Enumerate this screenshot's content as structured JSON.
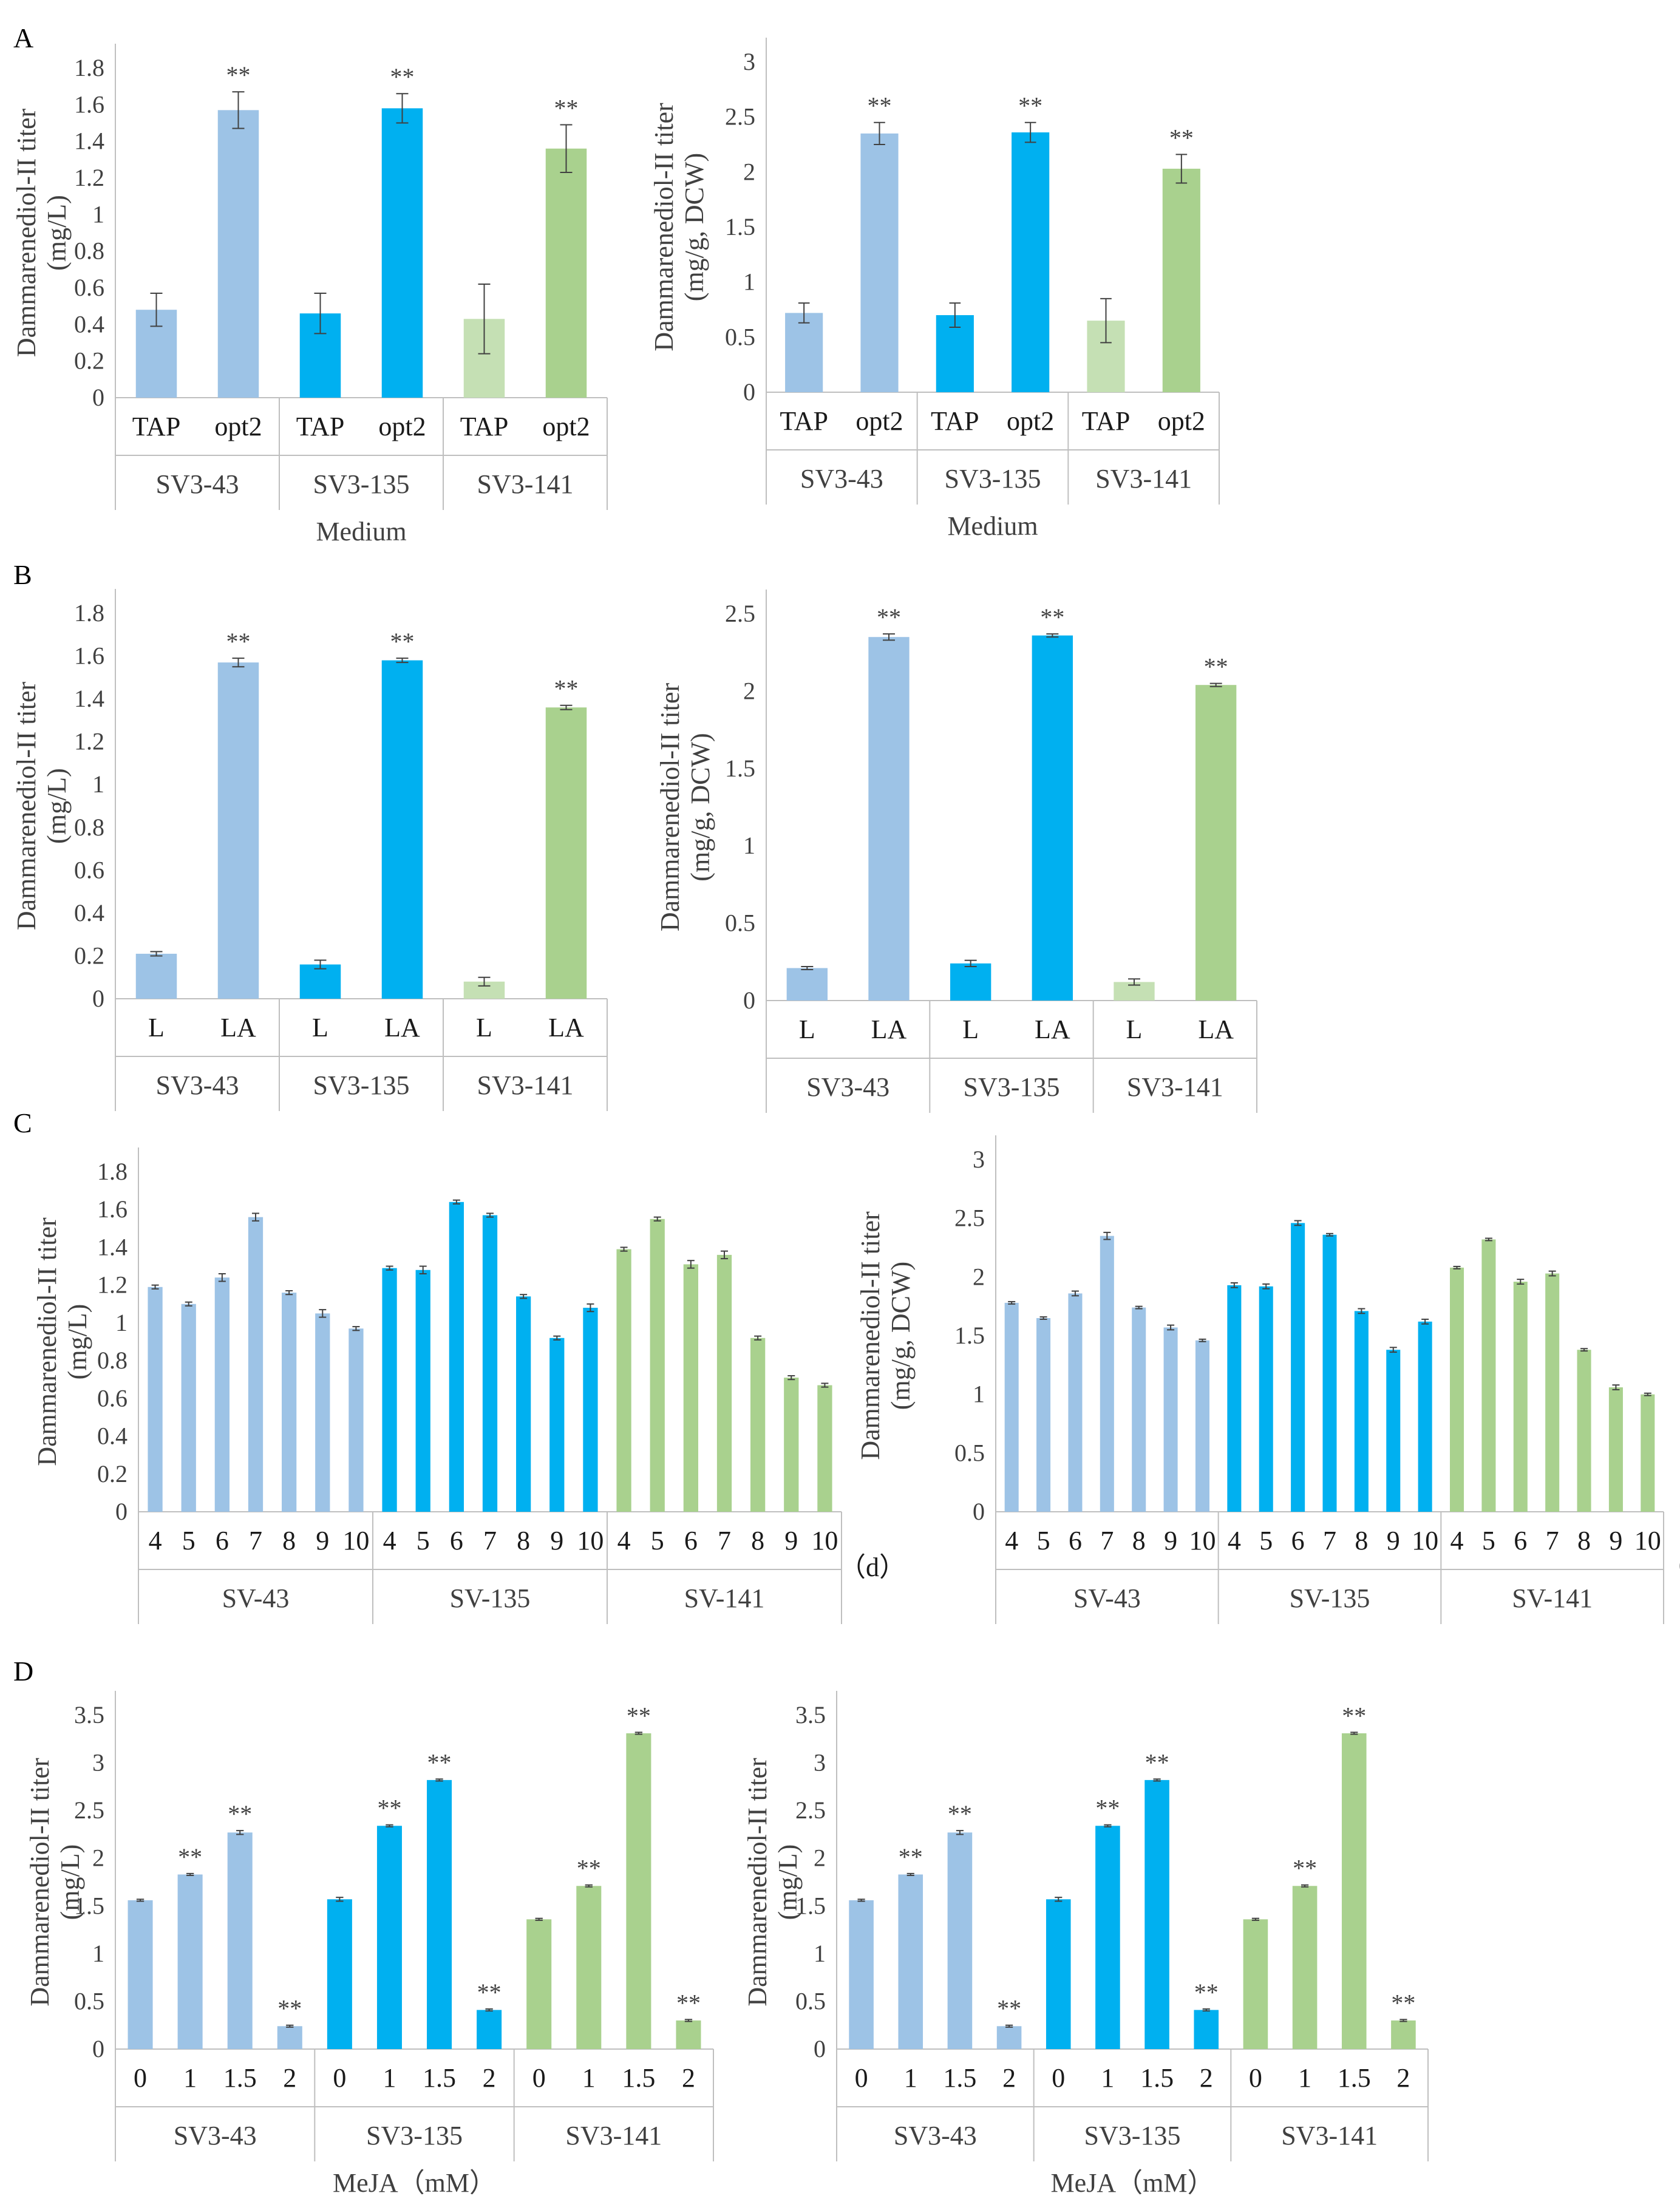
{
  "figure": {
    "panel_letters": [
      "A",
      "B",
      "C",
      "D"
    ]
  },
  "colors": {
    "SV3-43": "#9dc3e6",
    "SV3-135": "#00b0f0",
    "SV3-141_light": "#c5e0b4",
    "SV3-141": "#a9d18e",
    "axis": "#bfbfbf",
    "error": "#404040"
  },
  "chart_data": [
    {
      "id": "A-left",
      "panel": "A",
      "type": "bar",
      "ylabel": "Dammarenediol-II titer (mg/L)",
      "xlabel": "Medium",
      "ylim": [
        0,
        1.8
      ],
      "yticks": [
        0,
        0.2,
        0.4,
        0.6,
        0.8,
        1,
        1.2,
        1.4,
        1.6,
        1.8
      ],
      "groups": [
        "SV3-43",
        "SV3-135",
        "SV3-141"
      ],
      "categories": [
        "TAP",
        "opt2",
        "TAP",
        "opt2",
        "TAP",
        "opt2"
      ],
      "values": [
        0.48,
        1.57,
        0.46,
        1.58,
        0.43,
        1.36
      ],
      "errors": [
        0.09,
        0.1,
        0.11,
        0.08,
        0.19,
        0.13
      ],
      "significance": [
        "",
        "**",
        "",
        "**",
        "",
        "**"
      ],
      "bar_colors": [
        "#9dc3e6",
        "#9dc3e6",
        "#00b0f0",
        "#00b0f0",
        "#c5e0b4",
        "#a9d18e"
      ]
    },
    {
      "id": "A-right",
      "panel": "A",
      "type": "bar",
      "ylabel": "Dammarenediol-II titer (mg/g, DCW)",
      "xlabel": "Medium",
      "ylim": [
        0,
        3
      ],
      "yticks": [
        0,
        0.5,
        1,
        1.5,
        2,
        2.5,
        3
      ],
      "groups": [
        "SV3-43",
        "SV3-135",
        "SV3-141"
      ],
      "categories": [
        "TAP",
        "opt2",
        "TAP",
        "opt2",
        "TAP",
        "opt2"
      ],
      "values": [
        0.72,
        2.35,
        0.7,
        2.36,
        0.65,
        2.03
      ],
      "errors": [
        0.09,
        0.1,
        0.11,
        0.09,
        0.2,
        0.13
      ],
      "significance": [
        "",
        "**",
        "",
        "**",
        "",
        "**"
      ],
      "bar_colors": [
        "#9dc3e6",
        "#9dc3e6",
        "#00b0f0",
        "#00b0f0",
        "#c5e0b4",
        "#a9d18e"
      ]
    },
    {
      "id": "B-left",
      "panel": "B",
      "type": "bar",
      "ylabel": "Dammarenediol-II titer (mg/L)",
      "xlabel": "",
      "ylim": [
        0,
        1.8
      ],
      "yticks": [
        0,
        0.2,
        0.4,
        0.6,
        0.8,
        1,
        1.2,
        1.4,
        1.6,
        1.8
      ],
      "groups": [
        "SV3-43",
        "SV3-135",
        "SV3-141"
      ],
      "categories": [
        "L",
        "LA",
        "L",
        "LA",
        "L",
        "LA"
      ],
      "values": [
        0.21,
        1.57,
        0.16,
        1.58,
        0.08,
        1.36
      ],
      "errors": [
        0.01,
        0.02,
        0.02,
        0.01,
        0.02,
        0.01
      ],
      "significance": [
        "",
        "**",
        "",
        "**",
        "",
        "**"
      ],
      "bar_colors": [
        "#9dc3e6",
        "#9dc3e6",
        "#00b0f0",
        "#00b0f0",
        "#c5e0b4",
        "#a9d18e"
      ]
    },
    {
      "id": "B-right",
      "panel": "B",
      "type": "bar",
      "ylabel": "Dammarenediol-II titer (mg/g, DCW)",
      "xlabel": "",
      "ylim": [
        0,
        2.5
      ],
      "yticks": [
        0,
        0.5,
        1,
        1.5,
        2,
        2.5
      ],
      "groups": [
        "SV3-43",
        "SV3-135",
        "SV3-141"
      ],
      "categories": [
        "L",
        "LA",
        "L",
        "LA",
        "L",
        "LA"
      ],
      "values": [
        0.21,
        2.35,
        0.24,
        2.36,
        0.12,
        2.04
      ],
      "errors": [
        0.01,
        0.02,
        0.02,
        0.01,
        0.02,
        0.01
      ],
      "significance": [
        "",
        "**",
        "",
        "**",
        "",
        "**"
      ],
      "bar_colors": [
        "#9dc3e6",
        "#9dc3e6",
        "#00b0f0",
        "#00b0f0",
        "#c5e0b4",
        "#a9d18e"
      ]
    },
    {
      "id": "C-left",
      "panel": "C",
      "type": "bar",
      "ylabel": "Dammarenediol-II titer (mg/L)",
      "xlabel": "",
      "unit_label": "（d）",
      "ylim": [
        0,
        1.8
      ],
      "yticks": [
        0,
        0.2,
        0.4,
        0.6,
        0.8,
        1,
        1.2,
        1.4,
        1.6,
        1.8
      ],
      "groups": [
        "SV-43",
        "SV-135",
        "SV-141"
      ],
      "categories": [
        "4",
        "5",
        "6",
        "7",
        "8",
        "9",
        "10",
        "4",
        "5",
        "6",
        "7",
        "8",
        "9",
        "10",
        "4",
        "5",
        "6",
        "7",
        "8",
        "9",
        "10"
      ],
      "values": [
        1.19,
        1.1,
        1.24,
        1.56,
        1.16,
        1.05,
        0.97,
        1.29,
        1.28,
        1.64,
        1.57,
        1.14,
        0.92,
        1.08,
        1.39,
        1.55,
        1.31,
        1.36,
        0.92,
        0.71,
        0.67
      ],
      "errors": [
        0.01,
        0.01,
        0.02,
        0.02,
        0.01,
        0.02,
        0.01,
        0.01,
        0.02,
        0.01,
        0.01,
        0.01,
        0.01,
        0.02,
        0.01,
        0.01,
        0.02,
        0.02,
        0.01,
        0.01,
        0.01
      ],
      "significance": [
        "",
        "",
        "",
        "",
        "",
        "",
        "",
        "",
        "",
        "",
        "",
        "",
        "",
        "",
        "",
        "",
        "",
        "",
        "",
        "",
        ""
      ],
      "bar_colors": [
        "#9dc3e6",
        "#9dc3e6",
        "#9dc3e6",
        "#9dc3e6",
        "#9dc3e6",
        "#9dc3e6",
        "#9dc3e6",
        "#00b0f0",
        "#00b0f0",
        "#00b0f0",
        "#00b0f0",
        "#00b0f0",
        "#00b0f0",
        "#00b0f0",
        "#a9d18e",
        "#a9d18e",
        "#a9d18e",
        "#a9d18e",
        "#a9d18e",
        "#a9d18e",
        "#a9d18e"
      ]
    },
    {
      "id": "C-right",
      "panel": "C",
      "type": "bar",
      "ylabel": "Dammarenediol-II titer (mg/g, DCW)",
      "xlabel": "",
      "unit_label": "（d）",
      "ylim": [
        0,
        3
      ],
      "yticks": [
        0,
        0.5,
        1,
        1.5,
        2,
        2.5,
        3
      ],
      "groups": [
        "SV-43",
        "SV-135",
        "SV-141"
      ],
      "categories": [
        "4",
        "5",
        "6",
        "7",
        "8",
        "9",
        "10",
        "4",
        "5",
        "6",
        "7",
        "8",
        "9",
        "10",
        "4",
        "5",
        "6",
        "7",
        "8",
        "9",
        "10"
      ],
      "values": [
        1.78,
        1.65,
        1.86,
        2.35,
        1.74,
        1.57,
        1.46,
        1.93,
        1.92,
        2.46,
        2.36,
        1.71,
        1.38,
        1.62,
        2.08,
        2.32,
        1.96,
        2.03,
        1.38,
        1.06,
        1.0
      ],
      "errors": [
        0.01,
        0.01,
        0.02,
        0.03,
        0.01,
        0.02,
        0.01,
        0.02,
        0.02,
        0.02,
        0.01,
        0.02,
        0.02,
        0.02,
        0.01,
        0.01,
        0.02,
        0.02,
        0.01,
        0.02,
        0.01
      ],
      "significance": [
        "",
        "",
        "",
        "",
        "",
        "",
        "",
        "",
        "",
        "",
        "",
        "",
        "",
        "",
        "",
        "",
        "",
        "",
        "",
        "",
        ""
      ],
      "bar_colors": [
        "#9dc3e6",
        "#9dc3e6",
        "#9dc3e6",
        "#9dc3e6",
        "#9dc3e6",
        "#9dc3e6",
        "#9dc3e6",
        "#00b0f0",
        "#00b0f0",
        "#00b0f0",
        "#00b0f0",
        "#00b0f0",
        "#00b0f0",
        "#00b0f0",
        "#a9d18e",
        "#a9d18e",
        "#a9d18e",
        "#a9d18e",
        "#a9d18e",
        "#a9d18e",
        "#a9d18e"
      ]
    },
    {
      "id": "D-left",
      "panel": "D",
      "type": "bar",
      "ylabel": "Dammarenediol-II titer (mg/L)",
      "xlabel": "MeJA（mM）",
      "ylim": [
        0,
        3.5
      ],
      "yticks": [
        0,
        0.5,
        1,
        1.5,
        2,
        2.5,
        3,
        3.5
      ],
      "groups": [
        "SV3-43",
        "SV3-135",
        "SV3-141"
      ],
      "categories": [
        "0",
        "1",
        "1.5",
        "2",
        "0",
        "1",
        "1.5",
        "2",
        "0",
        "1",
        "1.5",
        "2"
      ],
      "values": [
        1.56,
        1.83,
        2.27,
        0.24,
        1.57,
        2.34,
        2.82,
        0.41,
        1.36,
        1.71,
        3.31,
        0.3
      ],
      "errors": [
        0.01,
        0.01,
        0.02,
        0.01,
        0.02,
        0.01,
        0.01,
        0.01,
        0.01,
        0.01,
        0.01,
        0.01
      ],
      "significance": [
        "",
        "**",
        "**",
        "**",
        "",
        "**",
        "**",
        "**",
        "",
        "**",
        "**",
        "**"
      ],
      "bar_colors": [
        "#9dc3e6",
        "#9dc3e6",
        "#9dc3e6",
        "#9dc3e6",
        "#00b0f0",
        "#00b0f0",
        "#00b0f0",
        "#00b0f0",
        "#a9d18e",
        "#a9d18e",
        "#a9d18e",
        "#a9d18e"
      ]
    },
    {
      "id": "D-right",
      "panel": "D",
      "type": "bar",
      "ylabel": "Dammarenediol-II titer (mg/L)",
      "xlabel": "MeJA（mM）",
      "ylim": [
        0,
        3.5
      ],
      "yticks": [
        0,
        0.5,
        1,
        1.5,
        2,
        2.5,
        3,
        3.5
      ],
      "groups": [
        "SV3-43",
        "SV3-135",
        "SV3-141"
      ],
      "categories": [
        "0",
        "1",
        "1.5",
        "2",
        "0",
        "1",
        "1.5",
        "2",
        "0",
        "1",
        "1.5",
        "2"
      ],
      "values": [
        1.56,
        1.83,
        2.27,
        0.24,
        1.57,
        2.34,
        2.82,
        0.41,
        1.36,
        1.71,
        3.31,
        0.3
      ],
      "errors": [
        0.01,
        0.01,
        0.02,
        0.01,
        0.02,
        0.01,
        0.01,
        0.01,
        0.01,
        0.01,
        0.01,
        0.01
      ],
      "significance": [
        "",
        "**",
        "**",
        "**",
        "",
        "**",
        "**",
        "**",
        "",
        "**",
        "**",
        "**"
      ],
      "bar_colors": [
        "#9dc3e6",
        "#9dc3e6",
        "#9dc3e6",
        "#9dc3e6",
        "#00b0f0",
        "#00b0f0",
        "#00b0f0",
        "#00b0f0",
        "#a9d18e",
        "#a9d18e",
        "#a9d18e",
        "#a9d18e"
      ]
    }
  ]
}
